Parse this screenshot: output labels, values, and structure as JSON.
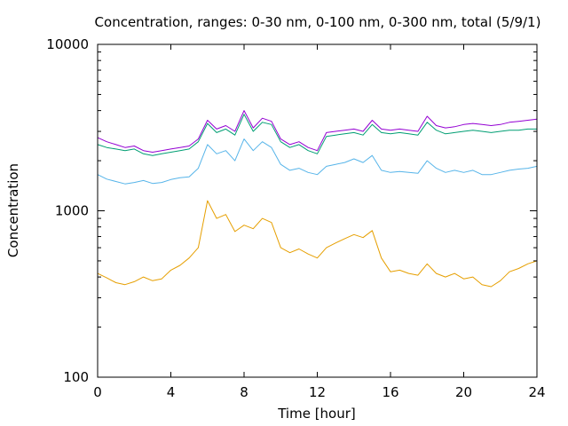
{
  "chart_data": {
    "type": "line",
    "title": "Concentration, ranges: 0-30 nm, 0-100 nm, 0-300 nm, total (5/9/1)",
    "xlabel": "Time [hour]",
    "ylabel": "Concentration",
    "xlim": [
      0,
      24
    ],
    "ylim": [
      100,
      10000
    ],
    "yscale": "log",
    "grid": false,
    "legend": "none",
    "x_ticks": [
      "0",
      "4",
      "8",
      "12",
      "16",
      "20",
      "24"
    ],
    "y_ticks": [
      "100",
      "1000",
      "10000"
    ],
    "x": [
      0,
      0.5,
      1,
      1.5,
      2,
      2.5,
      3,
      3.5,
      4,
      4.5,
      5,
      5.5,
      6,
      6.5,
      7,
      7.5,
      8,
      8.5,
      9,
      9.5,
      10,
      10.5,
      11,
      11.5,
      12,
      12.5,
      13,
      13.5,
      14,
      14.5,
      15,
      15.5,
      16,
      16.5,
      17,
      17.5,
      18,
      18.5,
      19,
      19.5,
      20,
      20.5,
      21,
      21.5,
      22,
      22.5,
      23,
      23.5,
      24
    ],
    "series": [
      {
        "color": "#e69f00",
        "values": [
          420,
          395,
          370,
          360,
          375,
          400,
          380,
          390,
          440,
          470,
          520,
          600,
          1150,
          900,
          950,
          750,
          820,
          780,
          900,
          850,
          600,
          560,
          590,
          550,
          520,
          600,
          640,
          680,
          720,
          690,
          760,
          520,
          430,
          440,
          420,
          410,
          480,
          420,
          400,
          420,
          390,
          400,
          360,
          350,
          380,
          430,
          450,
          480,
          500
        ]
      },
      {
        "color": "#56b4e9",
        "values": [
          1650,
          1550,
          1500,
          1450,
          1480,
          1520,
          1460,
          1480,
          1540,
          1580,
          1600,
          1800,
          2500,
          2200,
          2300,
          2000,
          2700,
          2300,
          2600,
          2400,
          1900,
          1750,
          1800,
          1700,
          1650,
          1850,
          1900,
          1950,
          2050,
          1950,
          2150,
          1750,
          1700,
          1720,
          1700,
          1680,
          2000,
          1800,
          1700,
          1750,
          1700,
          1750,
          1650,
          1650,
          1700,
          1750,
          1780,
          1800,
          1850
        ]
      },
      {
        "color": "#009e73",
        "values": [
          2500,
          2400,
          2350,
          2300,
          2350,
          2200,
          2150,
          2200,
          2250,
          2300,
          2350,
          2600,
          3350,
          2950,
          3100,
          2850,
          3800,
          3000,
          3400,
          3300,
          2600,
          2400,
          2500,
          2300,
          2200,
          2800,
          2850,
          2900,
          2950,
          2850,
          3300,
          2950,
          2900,
          2950,
          2900,
          2850,
          3400,
          3050,
          2900,
          2950,
          3000,
          3050,
          3000,
          2950,
          3000,
          3050,
          3050,
          3100,
          3100
        ]
      },
      {
        "color": "#9400d3",
        "values": [
          2750,
          2600,
          2500,
          2400,
          2450,
          2300,
          2250,
          2300,
          2350,
          2400,
          2450,
          2700,
          3500,
          3100,
          3250,
          3000,
          4000,
          3150,
          3600,
          3450,
          2700,
          2500,
          2600,
          2400,
          2300,
          2950,
          3000,
          3050,
          3100,
          3000,
          3500,
          3100,
          3050,
          3100,
          3050,
          3000,
          3700,
          3250,
          3150,
          3200,
          3300,
          3350,
          3300,
          3250,
          3300,
          3400,
          3450,
          3500,
          3550
        ]
      }
    ]
  }
}
